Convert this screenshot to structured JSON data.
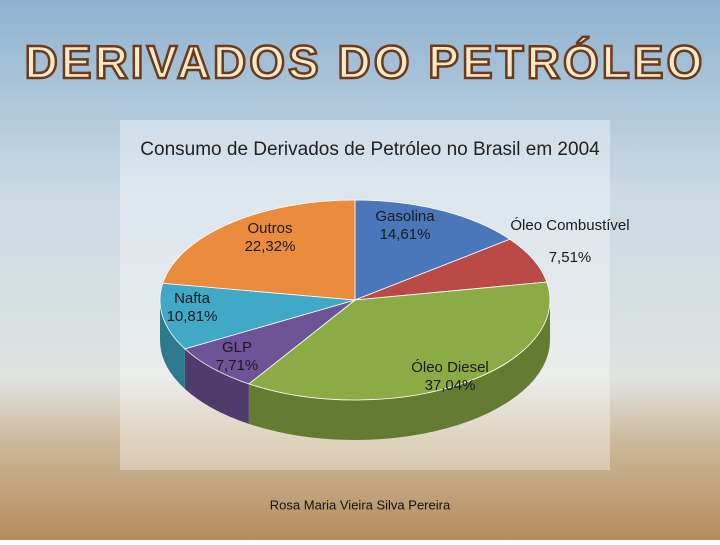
{
  "header": {
    "title": "DERIVADOS DO PETRÓLEO"
  },
  "chart_data": {
    "type": "pie3d",
    "title": "Consumo de Derivados de Petróleo no Brasil em 2004",
    "categories": [
      "Gasolina",
      "Óleo Combustível",
      "Óleo Diesel",
      "GLP",
      "Nafta",
      "Outros"
    ],
    "values": [
      14.61,
      7.51,
      37.04,
      7.71,
      10.81,
      22.32
    ],
    "value_labels": [
      "14,61%",
      "7,51%",
      "37,04%",
      "7,71%",
      "10,81%",
      "22,32%"
    ],
    "colors": [
      "#4a77b9",
      "#bb4a47",
      "#8bac45",
      "#6c5496",
      "#3fa9c6",
      "#ea8c3c"
    ]
  },
  "footer": {
    "author": "Rosa Maria Vieira Silva Pereira"
  }
}
